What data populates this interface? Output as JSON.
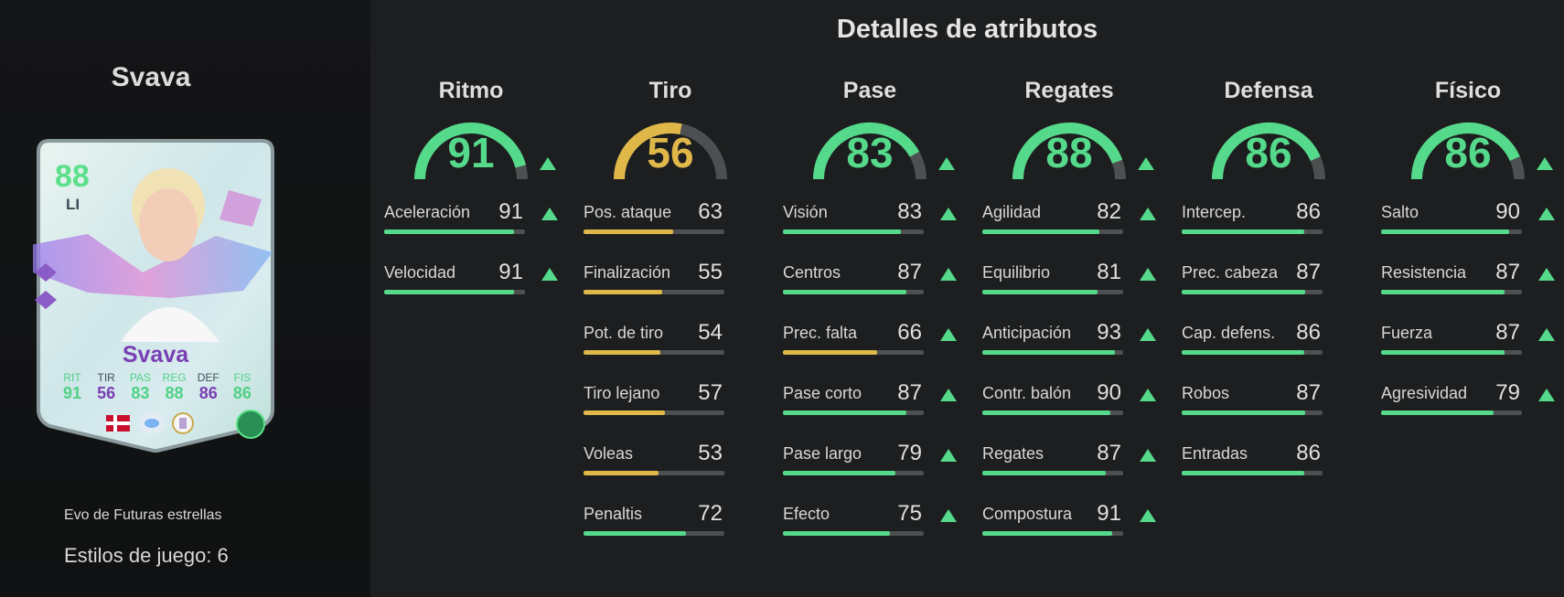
{
  "colors": {
    "high": "#55d98a",
    "mid": "#e0b84a",
    "track": "#4d4f51"
  },
  "player": {
    "name": "Svava",
    "card": {
      "rating": "88",
      "position": "LI",
      "name": "Svava",
      "stats": [
        {
          "label": "RIT",
          "value": "91",
          "hi": true
        },
        {
          "label": "TIR",
          "value": "56",
          "hi": false
        },
        {
          "label": "PAS",
          "value": "83",
          "hi": true
        },
        {
          "label": "REG",
          "value": "88",
          "hi": true
        },
        {
          "label": "DEF",
          "value": "86",
          "hi": false
        },
        {
          "label": "FIS",
          "value": "86",
          "hi": true
        }
      ],
      "league": "Liga F"
    },
    "evo_label": "Evo de Futuras estrellas",
    "playstyles": "Estilos de juego: 6"
  },
  "title": "Detalles de atributos",
  "categories": [
    {
      "name": "Ritmo",
      "value": 91,
      "upgraded": true,
      "stats": [
        {
          "label": "Aceleración",
          "value": 91,
          "upgraded": true
        },
        {
          "label": "Velocidad",
          "value": 91,
          "upgraded": true
        }
      ]
    },
    {
      "name": "Tiro",
      "value": 56,
      "upgraded": false,
      "stats": [
        {
          "label": "Pos. ataque",
          "value": 63,
          "upgraded": false
        },
        {
          "label": "Finalización",
          "value": 55,
          "upgraded": false
        },
        {
          "label": "Pot. de tiro",
          "value": 54,
          "upgraded": false
        },
        {
          "label": "Tiro lejano",
          "value": 57,
          "upgraded": false
        },
        {
          "label": "Voleas",
          "value": 53,
          "upgraded": false
        },
        {
          "label": "Penaltis",
          "value": 72,
          "upgraded": false
        }
      ]
    },
    {
      "name": "Pase",
      "value": 83,
      "upgraded": true,
      "stats": [
        {
          "label": "Visión",
          "value": 83,
          "upgraded": true
        },
        {
          "label": "Centros",
          "value": 87,
          "upgraded": true
        },
        {
          "label": "Prec. falta",
          "value": 66,
          "upgraded": true
        },
        {
          "label": "Pase corto",
          "value": 87,
          "upgraded": true
        },
        {
          "label": "Pase largo",
          "value": 79,
          "upgraded": true
        },
        {
          "label": "Efecto",
          "value": 75,
          "upgraded": true
        }
      ]
    },
    {
      "name": "Regates",
      "value": 88,
      "upgraded": true,
      "stats": [
        {
          "label": "Agilidad",
          "value": 82,
          "upgraded": true
        },
        {
          "label": "Equilibrio",
          "value": 81,
          "upgraded": true
        },
        {
          "label": "Anticipación",
          "value": 93,
          "upgraded": true
        },
        {
          "label": "Contr. balón",
          "value": 90,
          "upgraded": true
        },
        {
          "label": "Regates",
          "value": 87,
          "upgraded": true
        },
        {
          "label": "Compostura",
          "value": 91,
          "upgraded": true
        }
      ]
    },
    {
      "name": "Defensa",
      "value": 86,
      "upgraded": false,
      "stats": [
        {
          "label": "Intercep.",
          "value": 86,
          "upgraded": false
        },
        {
          "label": "Prec. cabeza",
          "value": 87,
          "upgraded": false
        },
        {
          "label": "Cap. defens.",
          "value": 86,
          "upgraded": false
        },
        {
          "label": "Robos",
          "value": 87,
          "upgraded": false
        },
        {
          "label": "Entradas",
          "value": 86,
          "upgraded": false
        }
      ]
    },
    {
      "name": "Físico",
      "value": 86,
      "upgraded": true,
      "stats": [
        {
          "label": "Salto",
          "value": 90,
          "upgraded": true
        },
        {
          "label": "Resistencia",
          "value": 87,
          "upgraded": true
        },
        {
          "label": "Fuerza",
          "value": 87,
          "upgraded": true
        },
        {
          "label": "Agresividad",
          "value": 79,
          "upgraded": true
        }
      ]
    }
  ]
}
